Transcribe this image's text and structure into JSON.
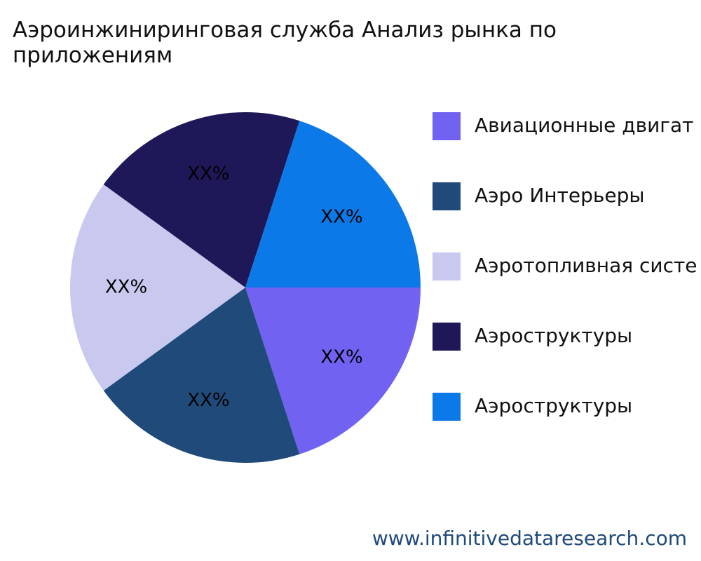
{
  "chart_data": {
    "type": "pie",
    "title": "Аэроинжиниринговая служба Анализ рынка по приложениям",
    "categories": [
      "Авиационные двигат",
      "Аэро Интерьеры",
      "Аэротопливная систе",
      "Аэроструктуры",
      "Аэроструктуры"
    ],
    "values": [
      20,
      20,
      20,
      20,
      20
    ],
    "value_labels": [
      "XX%",
      "XX%",
      "XX%",
      "XX%",
      "XX%"
    ],
    "colors": [
      "#7262f2",
      "#1f4a7a",
      "#c9c9f0",
      "#1e1858",
      "#0b7ae8"
    ],
    "legend": "right",
    "source": "www.infinitivedataresearch.com"
  }
}
